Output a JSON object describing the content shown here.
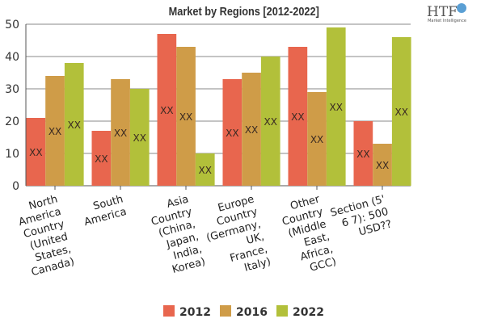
{
  "logo": {
    "text": "HTF",
    "subtext": "Market Intelligence"
  },
  "chart_data": {
    "type": "bar",
    "title": "Market by Regions [2012-2022]",
    "categories": [
      "North America Country (United States, Canada)",
      "South America",
      "Asia Country (China, Japan, India, Korea)",
      "Europe Country (Germany, UK, France, Italy)",
      "Other Country (Middle East, Africa, GCC)",
      "Section (5' 6 7): 500 USD??"
    ],
    "category_lines": [
      [
        "North",
        "America",
        "Country",
        "(United",
        "States,",
        "Canada)"
      ],
      [
        "South",
        "America"
      ],
      [
        "Asia",
        "Country",
        "(China,",
        "Japan,",
        "India,",
        "Korea)"
      ],
      [
        "Europe",
        "Country",
        "(Germany,",
        "UK,",
        "France,",
        "Italy)"
      ],
      [
        "Other",
        "Country",
        "(Middle",
        "East,",
        "Africa,",
        "GCC)"
      ],
      [
        "Section (5'",
        "6 7): 500",
        "USD??"
      ]
    ],
    "series": [
      {
        "name": "2012",
        "color": "#e8664e",
        "values": [
          21,
          17,
          47,
          33,
          43,
          20
        ]
      },
      {
        "name": "2016",
        "color": "#cf9c48",
        "values": [
          34,
          33,
          43,
          35,
          29,
          13
        ]
      },
      {
        "name": "2022",
        "color": "#b2c03a",
        "values": [
          38,
          30,
          10,
          40,
          49,
          46
        ]
      }
    ],
    "data_label": "XX",
    "ylim": [
      0,
      50
    ],
    "yticks": [
      0,
      10,
      20,
      30,
      40,
      50
    ],
    "grid": true,
    "legend": "bottom"
  }
}
